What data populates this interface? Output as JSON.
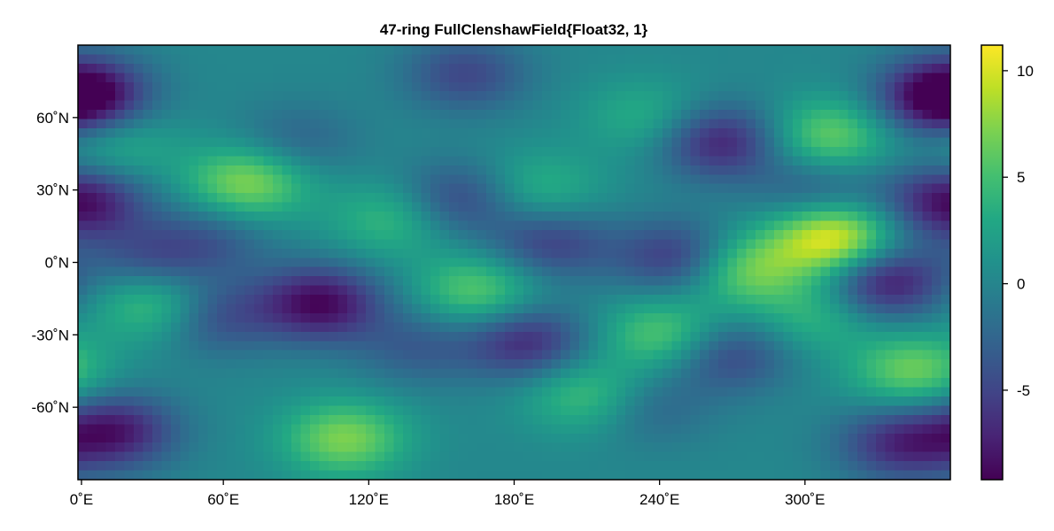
{
  "chart_data": {
    "type": "heatmap",
    "title": "47-ring FullClenshawField{Float32, 1}",
    "xlabel": "",
    "ylabel": "",
    "xlim": [
      0,
      360
    ],
    "ylim": [
      -90,
      90
    ],
    "x_ticks": [
      {
        "value": 0,
        "label": "0˚E"
      },
      {
        "value": 60,
        "label": "60˚E"
      },
      {
        "value": 120,
        "label": "120˚E"
      },
      {
        "value": 180,
        "label": "180˚E"
      },
      {
        "value": 240,
        "label": "240˚E"
      },
      {
        "value": 300,
        "label": "300˚E"
      }
    ],
    "y_ticks": [
      {
        "value": 60,
        "label": "60˚N"
      },
      {
        "value": 30,
        "label": "30˚N"
      },
      {
        "value": 0,
        "label": "0˚N"
      },
      {
        "value": -30,
        "label": "-30˚N"
      },
      {
        "value": -60,
        "label": "-60˚N"
      }
    ],
    "colorbar": {
      "colormap": "viridis",
      "range": [
        -9.2,
        11.2
      ],
      "ticks": [
        {
          "value": 10,
          "label": "10"
        },
        {
          "value": 5,
          "label": "5"
        },
        {
          "value": 0,
          "label": "0"
        },
        {
          "value": -5,
          "label": "-5"
        }
      ]
    },
    "grid": false,
    "nlat": 47,
    "nlon": 94,
    "background": 0.2,
    "features": [
      {
        "lon": 312,
        "lat": 10,
        "value": 11.0
      },
      {
        "lon": 70,
        "lat": 33,
        "value": 7.5
      },
      {
        "lon": 110,
        "lat": -73,
        "value": 7.0
      },
      {
        "lon": 310,
        "lat": 52,
        "value": 6.5
      },
      {
        "lon": 345,
        "lat": -45,
        "value": 6.5
      },
      {
        "lon": 275,
        "lat": -3,
        "value": 7.0
      },
      {
        "lon": 165,
        "lat": -12,
        "value": 6.0
      },
      {
        "lon": 33,
        "lat": -17,
        "value": 6.5
      },
      {
        "lon": 242,
        "lat": -30,
        "value": 6.0
      },
      {
        "lon": 210,
        "lat": -55,
        "value": 5.0
      },
      {
        "lon": 130,
        "lat": 18,
        "value": 4.5
      },
      {
        "lon": 190,
        "lat": 30,
        "value": 4.0
      },
      {
        "lon": 305,
        "lat": -22,
        "value": 4.0
      },
      {
        "lon": 15,
        "lat": 48,
        "value": 3.5
      },
      {
        "lon": 235,
        "lat": 60,
        "value": 3.5
      },
      {
        "lon": 100,
        "lat": -17,
        "value": -9.0
      },
      {
        "lon": 333,
        "lat": -8,
        "value": -8.5
      },
      {
        "lon": 355,
        "lat": 68,
        "value": -8.0
      },
      {
        "lon": 265,
        "lat": 50,
        "value": -7.5
      },
      {
        "lon": 15,
        "lat": -70,
        "value": -8.0
      },
      {
        "lon": 340,
        "lat": -75,
        "value": -7.0
      },
      {
        "lon": 185,
        "lat": -33,
        "value": -7.0
      },
      {
        "lon": 248,
        "lat": 2,
        "value": -6.5
      },
      {
        "lon": 268,
        "lat": -38,
        "value": -5.5
      },
      {
        "lon": 157,
        "lat": 26,
        "value": -5.5
      },
      {
        "lon": 55,
        "lat": -22,
        "value": -5.5
      },
      {
        "lon": 5,
        "lat": 70,
        "value": -6.0
      },
      {
        "lon": 195,
        "lat": 8,
        "value": -5.5
      },
      {
        "lon": 160,
        "lat": 78,
        "value": -5.0
      },
      {
        "lon": 5,
        "lat": 25,
        "value": -5.0
      },
      {
        "lon": 30,
        "lat": 0,
        "value": -4.5
      },
      {
        "lon": 305,
        "lat": 30,
        "value": -4.0
      },
      {
        "lon": 55,
        "lat": 10,
        "value": -3.5
      },
      {
        "lon": 90,
        "lat": 50,
        "value": -3.0
      },
      {
        "lon": 140,
        "lat": -35,
        "value": -3.5
      },
      {
        "lon": 355,
        "lat": 25,
        "value": -4.5
      },
      {
        "lon": 235,
        "lat": -60,
        "value": -3.0
      }
    ]
  }
}
